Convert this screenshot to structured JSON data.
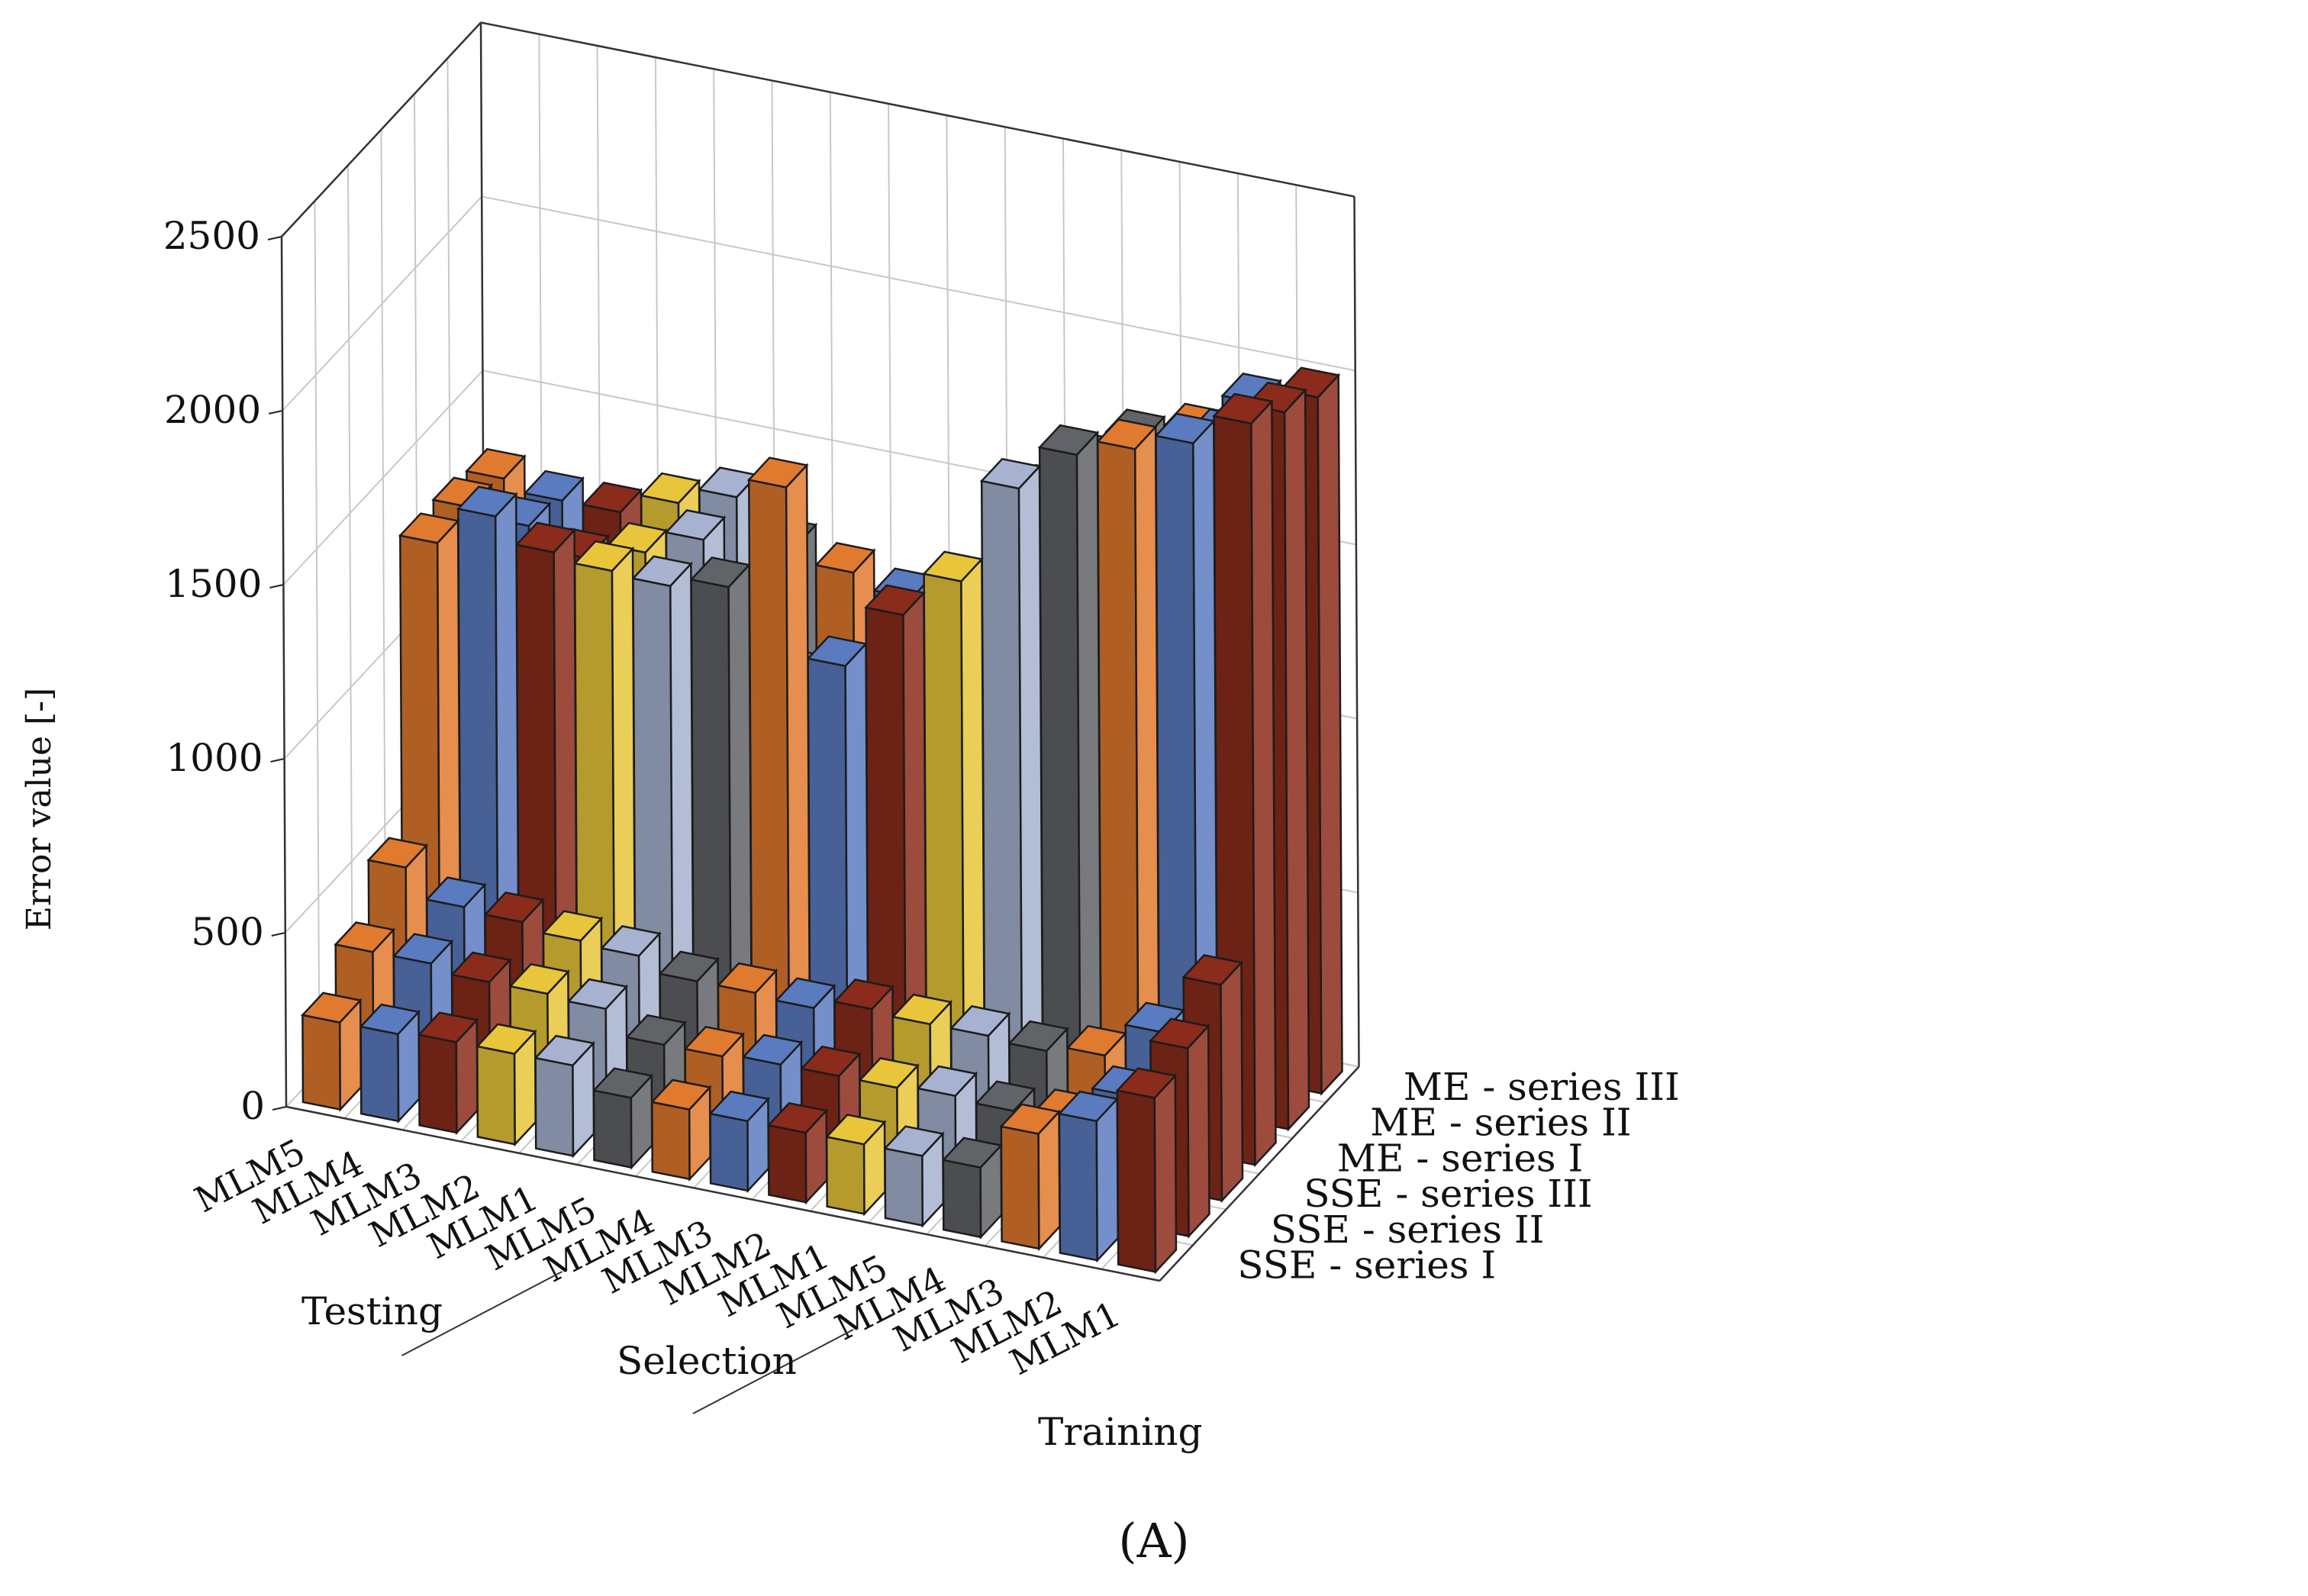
{
  "chart_data": {
    "type": "bar3d",
    "title": "",
    "ylabel": "Error value [-]",
    "ylim": [
      0,
      2500
    ],
    "yticks": [
      "0",
      "500",
      "1000",
      "1500",
      "2000",
      "2500"
    ],
    "grid": true,
    "panel_label": "(A)",
    "groups": [
      "Testing",
      "Selection",
      "Training"
    ],
    "categories": [
      "MLM5",
      "MLM4",
      "MLM3",
      "MLM2",
      "MLM1",
      "MLM5",
      "MLM4",
      "MLM3",
      "MLM2",
      "MLM1",
      "MLM5",
      "MLM4",
      "MLM3",
      "MLM2",
      "MLM1"
    ],
    "category_groups": [
      "Testing",
      "Testing",
      "Testing",
      "Testing",
      "Testing",
      "Selection",
      "Selection",
      "Selection",
      "Selection",
      "Selection",
      "Training",
      "Training",
      "Training",
      "Training",
      "Training"
    ],
    "series": [
      {
        "name": "SSE - series I",
        "values": [
          250,
          250,
          260,
          260,
          260,
          200,
          200,
          200,
          200,
          200,
          200,
          200,
          330,
          400,
          500
        ]
      },
      {
        "name": "SSE - series II",
        "values": [
          350,
          350,
          330,
          330,
          320,
          250,
          250,
          260,
          260,
          260,
          270,
          260,
          270,
          370,
          540
        ]
      },
      {
        "name": "SSE - series III",
        "values": [
          490,
          410,
          400,
          380,
          370,
          330,
          330,
          320,
          350,
          340,
          340,
          330,
          350,
          450,
          620
        ]
      },
      {
        "name": "ME - series I",
        "values": [
          1320,
          1430,
          1360,
          1340,
          1330,
          1360,
          1680,
          1200,
          1380,
          1510,
          1810,
          1940,
          1990,
          2040,
          2130
        ]
      },
      {
        "name": "ME - series II",
        "values": [
          1320,
          1300,
          1240,
          1290,
          1360,
          1150,
          1020,
          1030,
          1050,
          1270,
          1690,
          1810,
          1850,
          1950,
          2060
        ]
      },
      {
        "name": "ME - series III",
        "values": [
          1300,
          1270,
          1270,
          1330,
          1380,
          1270,
          1230,
          1190,
          1010,
          960,
          1470,
          1780,
          1830,
          1950,
          2000
        ]
      }
    ],
    "colors": [
      "#8b2b1b",
      "#5b7bc0",
      "#e07a2e",
      "#606367",
      "#a6b2cf",
      "#e8c53a"
    ],
    "series_label_color": "#111111"
  }
}
